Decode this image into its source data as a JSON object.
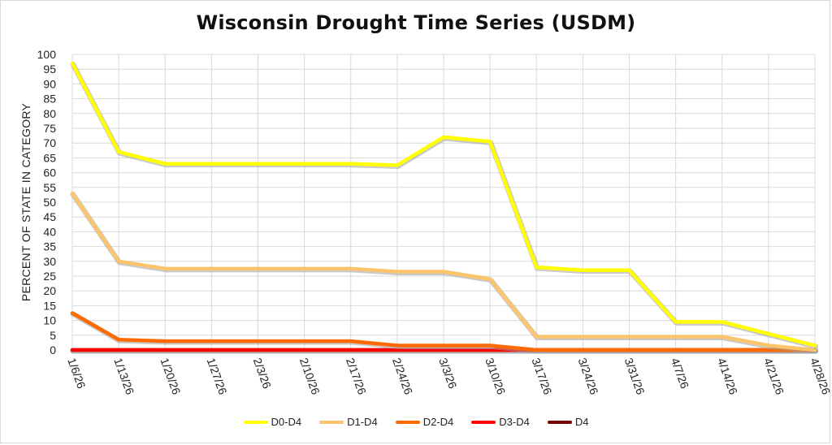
{
  "chart_data": {
    "type": "line",
    "title": "Wisconsin Drought Time Series (USDM)",
    "xlabel": "",
    "ylabel": "PERCENT OF STATE IN CATEGORY",
    "ylim": [
      0,
      100
    ],
    "yticks": [
      0,
      5,
      10,
      15,
      20,
      25,
      30,
      35,
      40,
      45,
      50,
      55,
      60,
      65,
      70,
      75,
      80,
      85,
      90,
      95,
      100
    ],
    "categories": [
      "1/6/26",
      "1/13/26",
      "1/20/26",
      "1/27/26",
      "2/3/26",
      "2/10/26",
      "2/17/26",
      "2/24/26",
      "3/3/26",
      "3/10/26",
      "3/17/26",
      "3/24/26",
      "3/31/26",
      "4/7/26",
      "4/14/26",
      "4/21/26",
      "4/28/26"
    ],
    "legend_position": "bottom",
    "grid": true,
    "series": [
      {
        "name": "D0-D4",
        "color": "#ffff00",
        "values": [
          97,
          67,
          63,
          63,
          63,
          63,
          63,
          62.5,
          72,
          70.5,
          28,
          27,
          27,
          9.5,
          9.5,
          5.5,
          1.5
        ]
      },
      {
        "name": "D1-D4",
        "color": "#fcc56b",
        "values": [
          53,
          30,
          27.5,
          27.5,
          27.5,
          27.5,
          27.5,
          26.5,
          26.5,
          24,
          4.5,
          4.5,
          4.5,
          4.5,
          4.5,
          1.5,
          0
        ]
      },
      {
        "name": "D2-D4",
        "color": "#ff6a00",
        "values": [
          12.5,
          3.5,
          3,
          3,
          3,
          3,
          3,
          1.5,
          1.5,
          1.5,
          0,
          0,
          0,
          0,
          0,
          0,
          0
        ]
      },
      {
        "name": "D3-D4",
        "color": "#ff0000",
        "values": [
          0,
          0,
          0,
          0,
          0,
          0,
          0,
          0,
          0,
          0,
          0,
          0,
          0,
          0,
          0,
          0,
          0
        ]
      },
      {
        "name": "D4",
        "color": "#730000",
        "values": [
          0,
          0,
          0,
          0,
          0,
          0,
          0,
          0,
          0,
          0,
          0,
          0,
          0,
          0,
          0,
          0,
          0
        ]
      }
    ]
  }
}
